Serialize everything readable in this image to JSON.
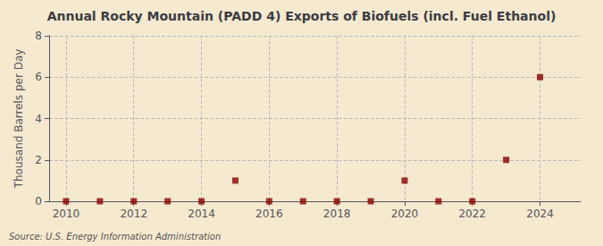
{
  "chart_data": {
    "type": "scatter",
    "title": "Annual Rocky Mountain (PADD 4) Exports of Biofuels (incl. Fuel Ethanol)",
    "ylabel": "Thousand Barrels per Day",
    "annotation": "Source: U.S. Energy Information Administration",
    "x": [
      2010,
      2011,
      2012,
      2013,
      2014,
      2015,
      2016,
      2017,
      2018,
      2019,
      2020,
      2021,
      2022,
      2023,
      2024
    ],
    "values": [
      0,
      0,
      0,
      0,
      0,
      1,
      0,
      0,
      0,
      0,
      1,
      0,
      0,
      2,
      6
    ],
    "color": "#8b0000",
    "marker": "square",
    "xlim": [
      2009.5,
      2025.2
    ],
    "xticks": [
      2010,
      2012,
      2014,
      2016,
      2018,
      2020,
      2022,
      2024
    ],
    "ylim": [
      0,
      8
    ],
    "yticks": [
      0,
      2,
      4,
      6,
      8
    ],
    "grid": true
  }
}
